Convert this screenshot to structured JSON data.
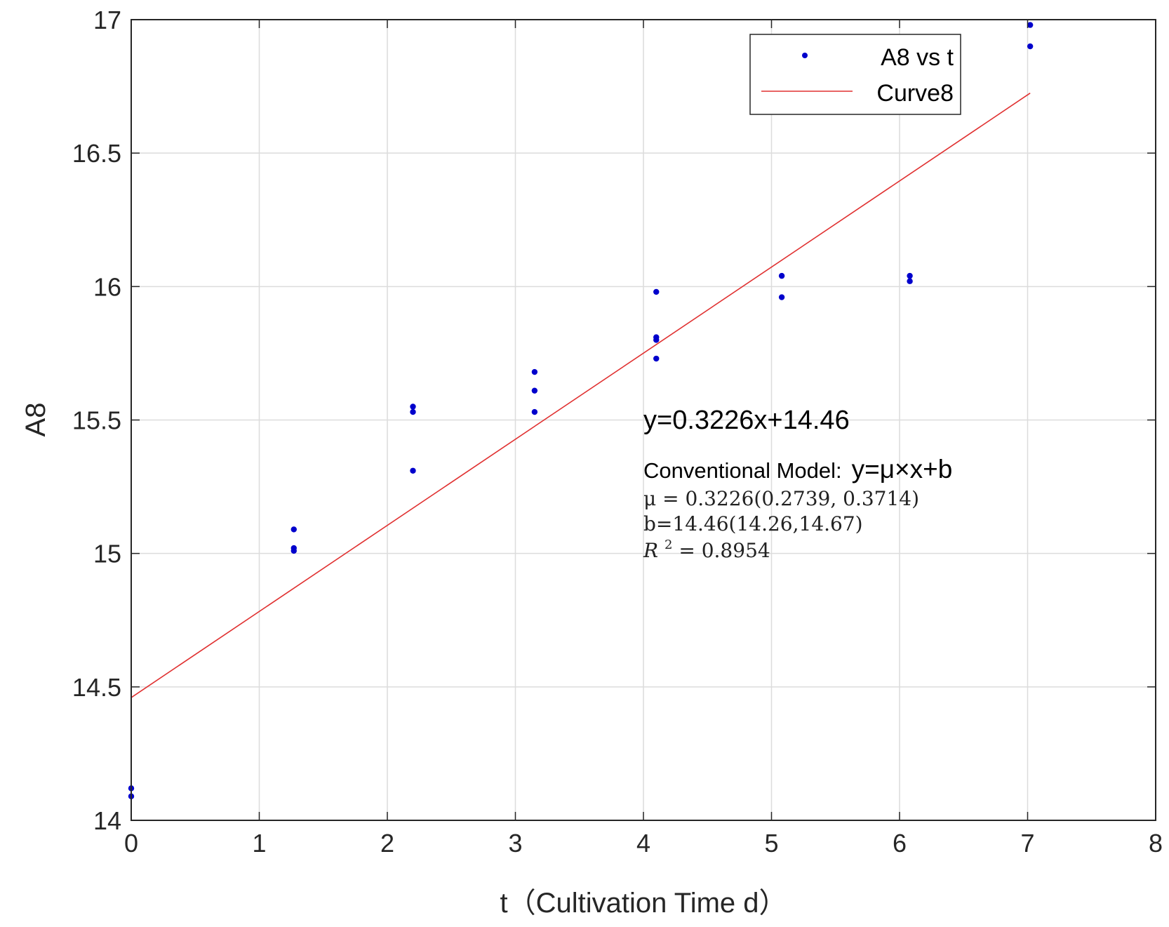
{
  "chart_data": {
    "type": "scatter",
    "xlabel": "t（Cultivation Time d）",
    "ylabel": "A8",
    "xlim": [
      0,
      8
    ],
    "ylim": [
      14,
      17
    ],
    "xticks": [
      "0",
      "1",
      "2",
      "3",
      "4",
      "5",
      "6",
      "7",
      "8"
    ],
    "yticks": [
      "14",
      "14.5",
      "15",
      "15.5",
      "16",
      "16.5",
      "17"
    ],
    "grid": true,
    "legend_position": "top-right",
    "series": [
      {
        "name": "A8 vs t",
        "type": "scatter",
        "color": "#0000cc",
        "points": [
          [
            0,
            14.12
          ],
          [
            0,
            14.09
          ],
          [
            1.27,
            15.09
          ],
          [
            1.27,
            15.02
          ],
          [
            1.27,
            15.01
          ],
          [
            2.2,
            15.55
          ],
          [
            2.2,
            15.53
          ],
          [
            2.2,
            15.31
          ],
          [
            3.15,
            15.68
          ],
          [
            3.15,
            15.61
          ],
          [
            3.15,
            15.53
          ],
          [
            4.1,
            15.98
          ],
          [
            4.1,
            15.81
          ],
          [
            4.1,
            15.8
          ],
          [
            4.1,
            15.73
          ],
          [
            5.08,
            16.04
          ],
          [
            5.08,
            15.96
          ],
          [
            6.08,
            16.04
          ],
          [
            6.08,
            16.02
          ],
          [
            7.02,
            16.98
          ],
          [
            7.02,
            16.9
          ]
        ]
      },
      {
        "name": "Curve8",
        "type": "line",
        "color": "#e03030",
        "slope": 0.3226,
        "intercept": 14.46,
        "x_range": [
          0,
          7.02
        ]
      }
    ],
    "annotations": {
      "equation": "y=0.3226x+14.46",
      "model_label": "Conventional Model:",
      "model_formula": "y=μ×x+b",
      "mu_line": "μ = 0.3226(0.2739, 0.3714)",
      "b_line": "b=14.46(14.26,14.67)",
      "r2_prefix": "R",
      "r2_sup": "2",
      "r2_value": " = 0.8954"
    }
  }
}
